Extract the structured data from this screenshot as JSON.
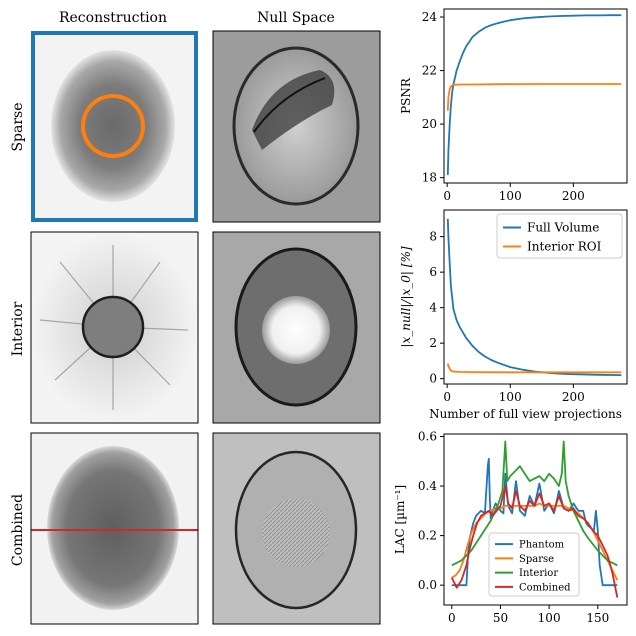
{
  "columns": {
    "reconstruction": "Reconstruction",
    "null_space": "Null Space"
  },
  "rows": {
    "sparse": "Sparse",
    "interior": "Interior",
    "combined": "Combined"
  },
  "chart_data": [
    {
      "type": "line",
      "xlim": [
        -5,
        285
      ],
      "ylim": [
        17.8,
        24.3
      ],
      "xticks": [
        0,
        100,
        200
      ],
      "yticks": [
        18,
        20,
        22,
        24
      ],
      "xlabel": "",
      "ylabel": "PSNR",
      "grid": false,
      "series": [
        {
          "color": "#1f77b4",
          "x": [
            1,
            2,
            4,
            6,
            8,
            10,
            15,
            20,
            25,
            30,
            40,
            50,
            60,
            70,
            80,
            90,
            100,
            120,
            140,
            160,
            180,
            200,
            220,
            240,
            260,
            276
          ],
          "y": [
            18.1,
            19.0,
            20.0,
            20.7,
            21.2,
            21.5,
            22.0,
            22.35,
            22.65,
            22.9,
            23.25,
            23.45,
            23.6,
            23.7,
            23.77,
            23.83,
            23.88,
            23.95,
            23.99,
            24.02,
            24.04,
            24.05,
            24.06,
            24.06,
            24.07,
            24.07
          ]
        },
        {
          "color": "#ff7f0e",
          "x": [
            1,
            2,
            4,
            6,
            8,
            10,
            20,
            40,
            80,
            150,
            200,
            276
          ],
          "y": [
            20.5,
            21.0,
            21.3,
            21.4,
            21.45,
            21.47,
            21.48,
            21.48,
            21.49,
            21.5,
            21.5,
            21.5
          ]
        }
      ]
    },
    {
      "type": "line",
      "xlim": [
        -5,
        285
      ],
      "ylim": [
        -0.3,
        9.5
      ],
      "xticks": [
        0,
        100,
        200
      ],
      "yticks": [
        0,
        2,
        4,
        6,
        8
      ],
      "xlabel": "Number of full view projections",
      "ylabel": "|x_null|/|x_0| [%]",
      "legend_position": "top-right",
      "series": [
        {
          "name": "Full Volume",
          "color": "#1f77b4",
          "x": [
            1,
            2,
            4,
            6,
            10,
            15,
            20,
            30,
            40,
            50,
            60,
            70,
            80,
            100,
            120,
            140,
            160,
            180,
            200,
            240,
            276
          ],
          "y": [
            9.0,
            8.0,
            6.5,
            5.2,
            3.9,
            3.3,
            2.9,
            2.3,
            1.85,
            1.5,
            1.25,
            1.05,
            0.9,
            0.65,
            0.5,
            0.4,
            0.33,
            0.28,
            0.25,
            0.22,
            0.2
          ]
        },
        {
          "name": "Interior ROI",
          "color": "#ff7f0e",
          "x": [
            1,
            2,
            4,
            6,
            10,
            20,
            40,
            100,
            200,
            276
          ],
          "y": [
            0.85,
            0.7,
            0.55,
            0.45,
            0.4,
            0.38,
            0.37,
            0.36,
            0.36,
            0.36
          ]
        }
      ]
    },
    {
      "type": "line",
      "xlim": [
        -8,
        180
      ],
      "ylim": [
        -0.08,
        0.61
      ],
      "xticks": [
        0,
        50,
        100,
        150
      ],
      "yticks": [
        0.0,
        0.2,
        0.4,
        0.6
      ],
      "xticklabels": [
        "0",
        "50",
        "100",
        "150"
      ],
      "yticklabels": [
        "0.0",
        "0.2",
        "0.4",
        "0.6"
      ],
      "xlabel": "",
      "ylabel": "LAC [µm⁻¹]",
      "legend_position": "bottom-center",
      "series": [
        {
          "name": "Phantom",
          "color": "#1f77b4",
          "x": [
            0,
            10,
            15,
            17,
            19,
            22,
            25,
            30,
            34,
            37,
            38,
            39,
            40,
            42,
            45,
            50,
            53,
            55,
            58,
            62,
            66,
            70,
            75,
            80,
            85,
            90,
            95,
            100,
            105,
            110,
            115,
            120,
            125,
            130,
            135,
            138,
            140,
            143,
            146,
            148,
            150,
            152,
            155,
            165,
            170
          ],
          "y": [
            0.0,
            0.0,
            0.0,
            0.14,
            0.2,
            0.25,
            0.28,
            0.3,
            0.29,
            0.48,
            0.51,
            0.35,
            0.27,
            0.3,
            0.33,
            0.3,
            0.29,
            0.45,
            0.32,
            0.29,
            0.42,
            0.3,
            0.28,
            0.36,
            0.32,
            0.41,
            0.3,
            0.33,
            0.29,
            0.38,
            0.31,
            0.3,
            0.33,
            0.3,
            0.3,
            0.25,
            0.24,
            0.23,
            0.22,
            0.3,
            0.22,
            0.08,
            0.0,
            0.0,
            0.0
          ]
        },
        {
          "name": "Sparse",
          "color": "#ff7f0e",
          "x": [
            0,
            4,
            8,
            12,
            16,
            20,
            25,
            30,
            35,
            40,
            45,
            50,
            55,
            60,
            65,
            70,
            75,
            80,
            85,
            90,
            95,
            100,
            105,
            110,
            115,
            120,
            125,
            130,
            135,
            140,
            145,
            150,
            155,
            160,
            165,
            170
          ],
          "y": [
            0.03,
            0.04,
            0.06,
            0.1,
            0.16,
            0.21,
            0.25,
            0.27,
            0.29,
            0.3,
            0.31,
            0.31,
            0.32,
            0.32,
            0.32,
            0.32,
            0.32,
            0.32,
            0.32,
            0.33,
            0.32,
            0.32,
            0.32,
            0.32,
            0.32,
            0.31,
            0.3,
            0.29,
            0.27,
            0.25,
            0.22,
            0.18,
            0.14,
            0.1,
            0.06,
            0.02
          ]
        },
        {
          "name": "Interior",
          "color": "#2ca02c",
          "x": [
            0,
            10,
            20,
            30,
            40,
            48,
            52,
            55,
            57,
            60,
            65,
            70,
            75,
            80,
            85,
            90,
            95,
            100,
            105,
            110,
            113,
            115,
            117,
            120,
            125,
            130,
            135,
            140,
            150,
            160,
            170
          ],
          "y": [
            0.08,
            0.1,
            0.14,
            0.2,
            0.26,
            0.33,
            0.38,
            0.58,
            0.42,
            0.44,
            0.46,
            0.48,
            0.45,
            0.42,
            0.43,
            0.44,
            0.42,
            0.45,
            0.43,
            0.4,
            0.45,
            0.58,
            0.42,
            0.36,
            0.3,
            0.26,
            0.22,
            0.19,
            0.14,
            0.1,
            0.08
          ]
        },
        {
          "name": "Combined",
          "color": "#d62728",
          "x": [
            0,
            5,
            10,
            15,
            18,
            22,
            26,
            30,
            34,
            38,
            42,
            46,
            50,
            55,
            58,
            62,
            66,
            70,
            75,
            80,
            85,
            90,
            95,
            100,
            105,
            110,
            115,
            120,
            125,
            130,
            135,
            140,
            145,
            150,
            155,
            160,
            165,
            170
          ],
          "y": [
            0.03,
            -0.01,
            0.02,
            0.08,
            0.14,
            0.2,
            0.25,
            0.28,
            0.29,
            0.3,
            0.28,
            0.3,
            0.32,
            0.4,
            0.33,
            0.31,
            0.38,
            0.32,
            0.3,
            0.34,
            0.32,
            0.37,
            0.32,
            0.33,
            0.3,
            0.36,
            0.31,
            0.3,
            0.31,
            0.28,
            0.27,
            0.25,
            0.22,
            0.2,
            0.16,
            0.12,
            0.05,
            -0.05
          ]
        }
      ]
    }
  ]
}
